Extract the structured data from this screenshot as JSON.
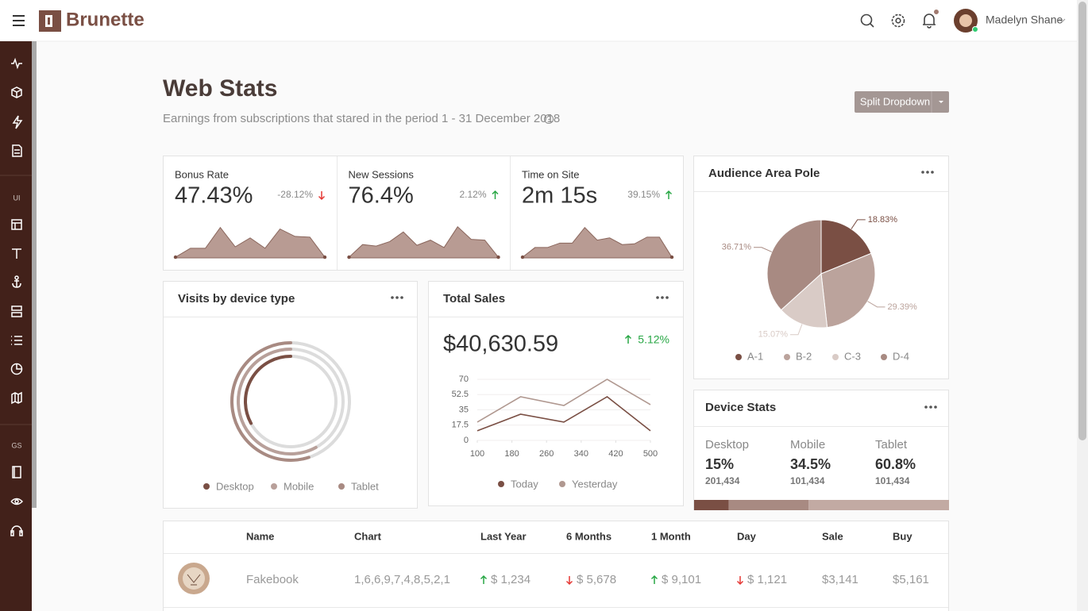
{
  "header": {
    "brand": "Brunette",
    "user": "Madelyn Shane"
  },
  "sidebar": {
    "sections": [
      "UI",
      "GS"
    ]
  },
  "page": {
    "title": "Web Stats",
    "subtitle": "Earnings from subscriptions that stared in the period 1 - 31 December 2018",
    "button": "Split Dropdown"
  },
  "kpis": [
    {
      "label": "Bonus Rate",
      "value": "47.43%",
      "change": "-28.12%",
      "trend": "down"
    },
    {
      "label": "New Sessions",
      "value": "76.4%",
      "change": "2.12%",
      "trend": "up"
    },
    {
      "label": "Time on Site",
      "value": "2m 15s",
      "change": "39.15%",
      "trend": "up"
    }
  ],
  "chart_data": [
    {
      "type": "area",
      "values": [
        1,
        13,
        13,
        41,
        15,
        27,
        13,
        39,
        29,
        28,
        1
      ],
      "ylim": [
        0,
        45
      ],
      "color": "#b89b93"
    },
    {
      "type": "area",
      "values": [
        1,
        18,
        16,
        22,
        35,
        17,
        24,
        14,
        42,
        25,
        24,
        1
      ],
      "ylim": [
        0,
        45
      ],
      "color": "#b89b93"
    },
    {
      "type": "area",
      "values": [
        1,
        14,
        14,
        20,
        20,
        41,
        24,
        27,
        18,
        19,
        28,
        28,
        1
      ],
      "ylim": [
        0,
        45
      ],
      "color": "#b89b93"
    },
    {
      "type": "radial_bar",
      "title": "Visits by device type",
      "categories": [
        "Desktop",
        "Mobile",
        "Tablet"
      ],
      "values": [
        33,
        58,
        55
      ],
      "colors": [
        "#7a4f44",
        "#b8a09a",
        "#a88a82"
      ],
      "ylim": [
        0,
        100
      ]
    },
    {
      "type": "line",
      "title": "Total Sales",
      "annotations": {
        "amount": "$40,630.59",
        "change": "5.12%",
        "trend": "up"
      },
      "x": [
        100,
        200,
        300,
        400,
        500
      ],
      "xlim": [
        100,
        500
      ],
      "xticks": [
        100,
        180,
        260,
        340,
        420,
        500
      ],
      "ylim": [
        0,
        70
      ],
      "yticks": [
        0,
        17.5,
        35,
        52.5,
        70
      ],
      "grid": true,
      "series": [
        {
          "name": "Today",
          "color": "#7a4f44",
          "values": [
            11,
            30,
            21,
            50,
            11
          ]
        },
        {
          "name": "Yesterday",
          "color": "#b09890",
          "values": [
            21,
            50,
            40,
            70,
            41
          ]
        }
      ]
    },
    {
      "type": "pie",
      "title": "Audience Area Pole",
      "categories": [
        "A-1",
        "B-2",
        "C-3",
        "D-4"
      ],
      "values": [
        18.83,
        29.39,
        15.07,
        36.71
      ],
      "value_labels": [
        "18.83%",
        "29.39%",
        "15.07%",
        "36.71%"
      ],
      "colors": [
        "#7a4f44",
        "#bba39c",
        "#d9cbc6",
        "#a88a82"
      ]
    },
    {
      "type": "progress",
      "title": "Device Stats",
      "categories": [
        "Desktop",
        "Mobile",
        "Tablet"
      ],
      "values": [
        15,
        34.5,
        60.8
      ],
      "value_labels": [
        "15%",
        "34.5%",
        "60.8%"
      ],
      "counts": [
        201434,
        101434,
        101434
      ],
      "count_labels": [
        "201,434",
        "101,434",
        "101,434"
      ],
      "colors": [
        "#7a4f44",
        "#a88a82",
        "#c2aaa3"
      ]
    }
  ],
  "table": {
    "columns": [
      "Name",
      "Chart",
      "Last Year",
      "6 Months",
      "1 Month",
      "Day",
      "Sale",
      "Buy"
    ],
    "rows": [
      [
        "Fakebook",
        "1,6,6,9,7,4,8,5,2,1",
        {
          "text": "$ 1,234",
          "trend": "up"
        },
        {
          "text": "$ 5,678",
          "trend": "down"
        },
        {
          "text": "$ 9,101",
          "trend": "up"
        },
        {
          "text": "$ 1,121",
          "trend": "down"
        },
        "$3,141",
        "$5,161"
      ]
    ]
  }
}
